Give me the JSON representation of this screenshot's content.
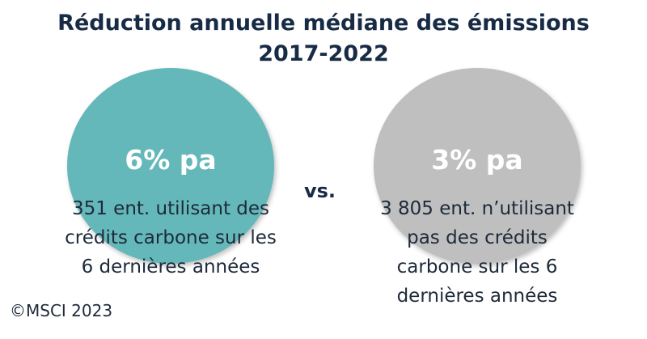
{
  "title": {
    "line1": "Réduction annuelle médiane des émissions",
    "line2": "2017-2022"
  },
  "colors": {
    "left_circle": "#65b8b9",
    "right_circle": "#bfbfbf",
    "title": "#172b45"
  },
  "left": {
    "value": "6% pa",
    "lines": [
      "351 ent. utilisant des",
      "crédits carbone sur les",
      "6 dernières années"
    ]
  },
  "vs": "vs.",
  "right": {
    "value": "3% pa",
    "lines": [
      "3 805 ent. n’utilisant",
      "pas des crédits",
      "carbone sur les 6",
      "dernières années"
    ]
  },
  "copyright": "©MSCI 2023"
}
